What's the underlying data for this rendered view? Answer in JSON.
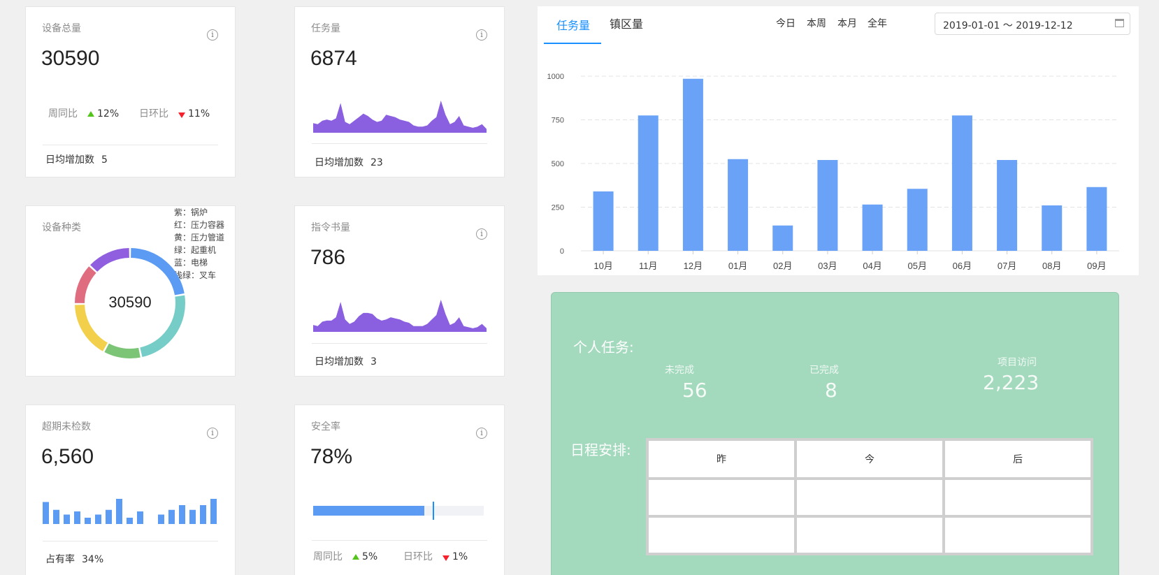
{
  "cards": {
    "total": {
      "title": "设备总量",
      "value": "30590",
      "wow_label": "周同比",
      "wow_value": "12%",
      "dod_label": "日环比",
      "dod_value": "11%",
      "footer_label": "日均增加数",
      "footer_value": "5"
    },
    "tasks": {
      "title": "任务量",
      "value": "6874",
      "footer_label": "日均增加数",
      "footer_value": "23"
    },
    "types": {
      "title": "设备种类",
      "center_value": "30590",
      "legend": [
        "紫：锅炉",
        "红：压力容器",
        "黄：压力管道",
        "绿：起重机",
        "蓝：电梯",
        "浅绿：叉车"
      ]
    },
    "orders": {
      "title": "指令书量",
      "value": "786",
      "footer_label": "日均增加数",
      "footer_value": "3"
    },
    "overdue": {
      "title": "超期未检数",
      "value": "6,560",
      "footer_label": "占有率",
      "footer_value": "34%"
    },
    "safety": {
      "title": "安全率",
      "value": "78%",
      "progress": 0.65,
      "target": 0.7,
      "wow_label": "周同比",
      "wow_value": "5%",
      "dod_label": "日环比",
      "dod_value": "1%"
    }
  },
  "sparklines": {
    "tasks": [
      7,
      6,
      9,
      10,
      9,
      11,
      24,
      8,
      6,
      9,
      12,
      15,
      13,
      10,
      8,
      9,
      14,
      13,
      12,
      10,
      9,
      8,
      5,
      4,
      4,
      5,
      9,
      12,
      26,
      14,
      6,
      8,
      13,
      5,
      4,
      3,
      4,
      6,
      2
    ],
    "orders": [
      5,
      4,
      8,
      9,
      9,
      12,
      26,
      10,
      6,
      8,
      13,
      16,
      16,
      15,
      11,
      9,
      10,
      12,
      11,
      10,
      8,
      7,
      4,
      4,
      4,
      6,
      10,
      14,
      28,
      15,
      5,
      7,
      12,
      4,
      3,
      2,
      3,
      6,
      2
    ]
  },
  "mini_bars": [
    14,
    9,
    6,
    8,
    4,
    6,
    9,
    16,
    4,
    8,
    0,
    6,
    9,
    12,
    9,
    12,
    16
  ],
  "donut": {
    "segments": [
      {
        "name": "蓝",
        "value": 24,
        "color": "#5b9bf4"
      },
      {
        "name": "浅绿",
        "value": 26,
        "color": "#76cdc8"
      },
      {
        "name": "绿",
        "value": 12,
        "color": "#7cc576"
      },
      {
        "name": "黄",
        "value": 18,
        "color": "#f2d04b"
      },
      {
        "name": "红",
        "value": 13,
        "color": "#e06c7f"
      },
      {
        "name": "紫",
        "value": 14,
        "color": "#8f5fe0"
      }
    ]
  },
  "chart_panel": {
    "tabs": [
      "任务量",
      "镇区量"
    ],
    "ranges": [
      "今日",
      "本周",
      "本月",
      "全年"
    ],
    "date_range": "2019-01-01 ～ 2019-12-12"
  },
  "chart_data": {
    "type": "bar",
    "categories": [
      "10月",
      "11月",
      "12月",
      "01月",
      "02月",
      "03月",
      "04月",
      "05月",
      "06月",
      "07月",
      "08月",
      "09月"
    ],
    "values": [
      340,
      775,
      985,
      525,
      145,
      520,
      265,
      355,
      775,
      520,
      260,
      365
    ],
    "ylim": [
      0,
      1000
    ],
    "yticks": [
      "0",
      "250",
      "500",
      "750",
      "1000"
    ],
    "grid": true,
    "color": "#6aa2f8"
  },
  "personal": {
    "heading": "个人任务:",
    "unfinished_label": "未完成",
    "unfinished_value": "56",
    "finished_label": "已完成",
    "finished_value": "8",
    "visits_label": "项目访问",
    "visits_value": "2,223"
  },
  "schedule": {
    "heading": "日程安排:",
    "columns": [
      "昨",
      "今",
      "后"
    ]
  }
}
